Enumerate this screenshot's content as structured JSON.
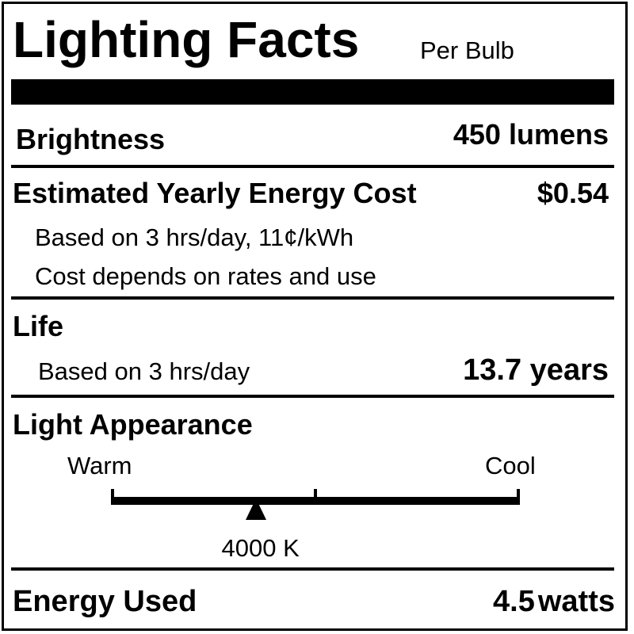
{
  "title": "Lighting Facts",
  "subtitle": "Per Bulb",
  "brightness": {
    "label": "Brightness",
    "value": "450 lumens"
  },
  "energy_cost": {
    "label": "Estimated Yearly Energy Cost",
    "value": "$0.54",
    "note1": "Based on 3 hrs/day, 11¢/kWh",
    "note2": "Cost depends on rates and use"
  },
  "life": {
    "label": "Life",
    "note": "Based on 3 hrs/day",
    "value": "13.7 years"
  },
  "light_appearance": {
    "label": "Light Appearance",
    "warm_label": "Warm",
    "cool_label": "Cool",
    "value": "4000 K",
    "marker_fraction": 0.354
  },
  "energy_used": {
    "label": "Energy Used",
    "value_number": "4.5",
    "value_unit": "watts"
  }
}
